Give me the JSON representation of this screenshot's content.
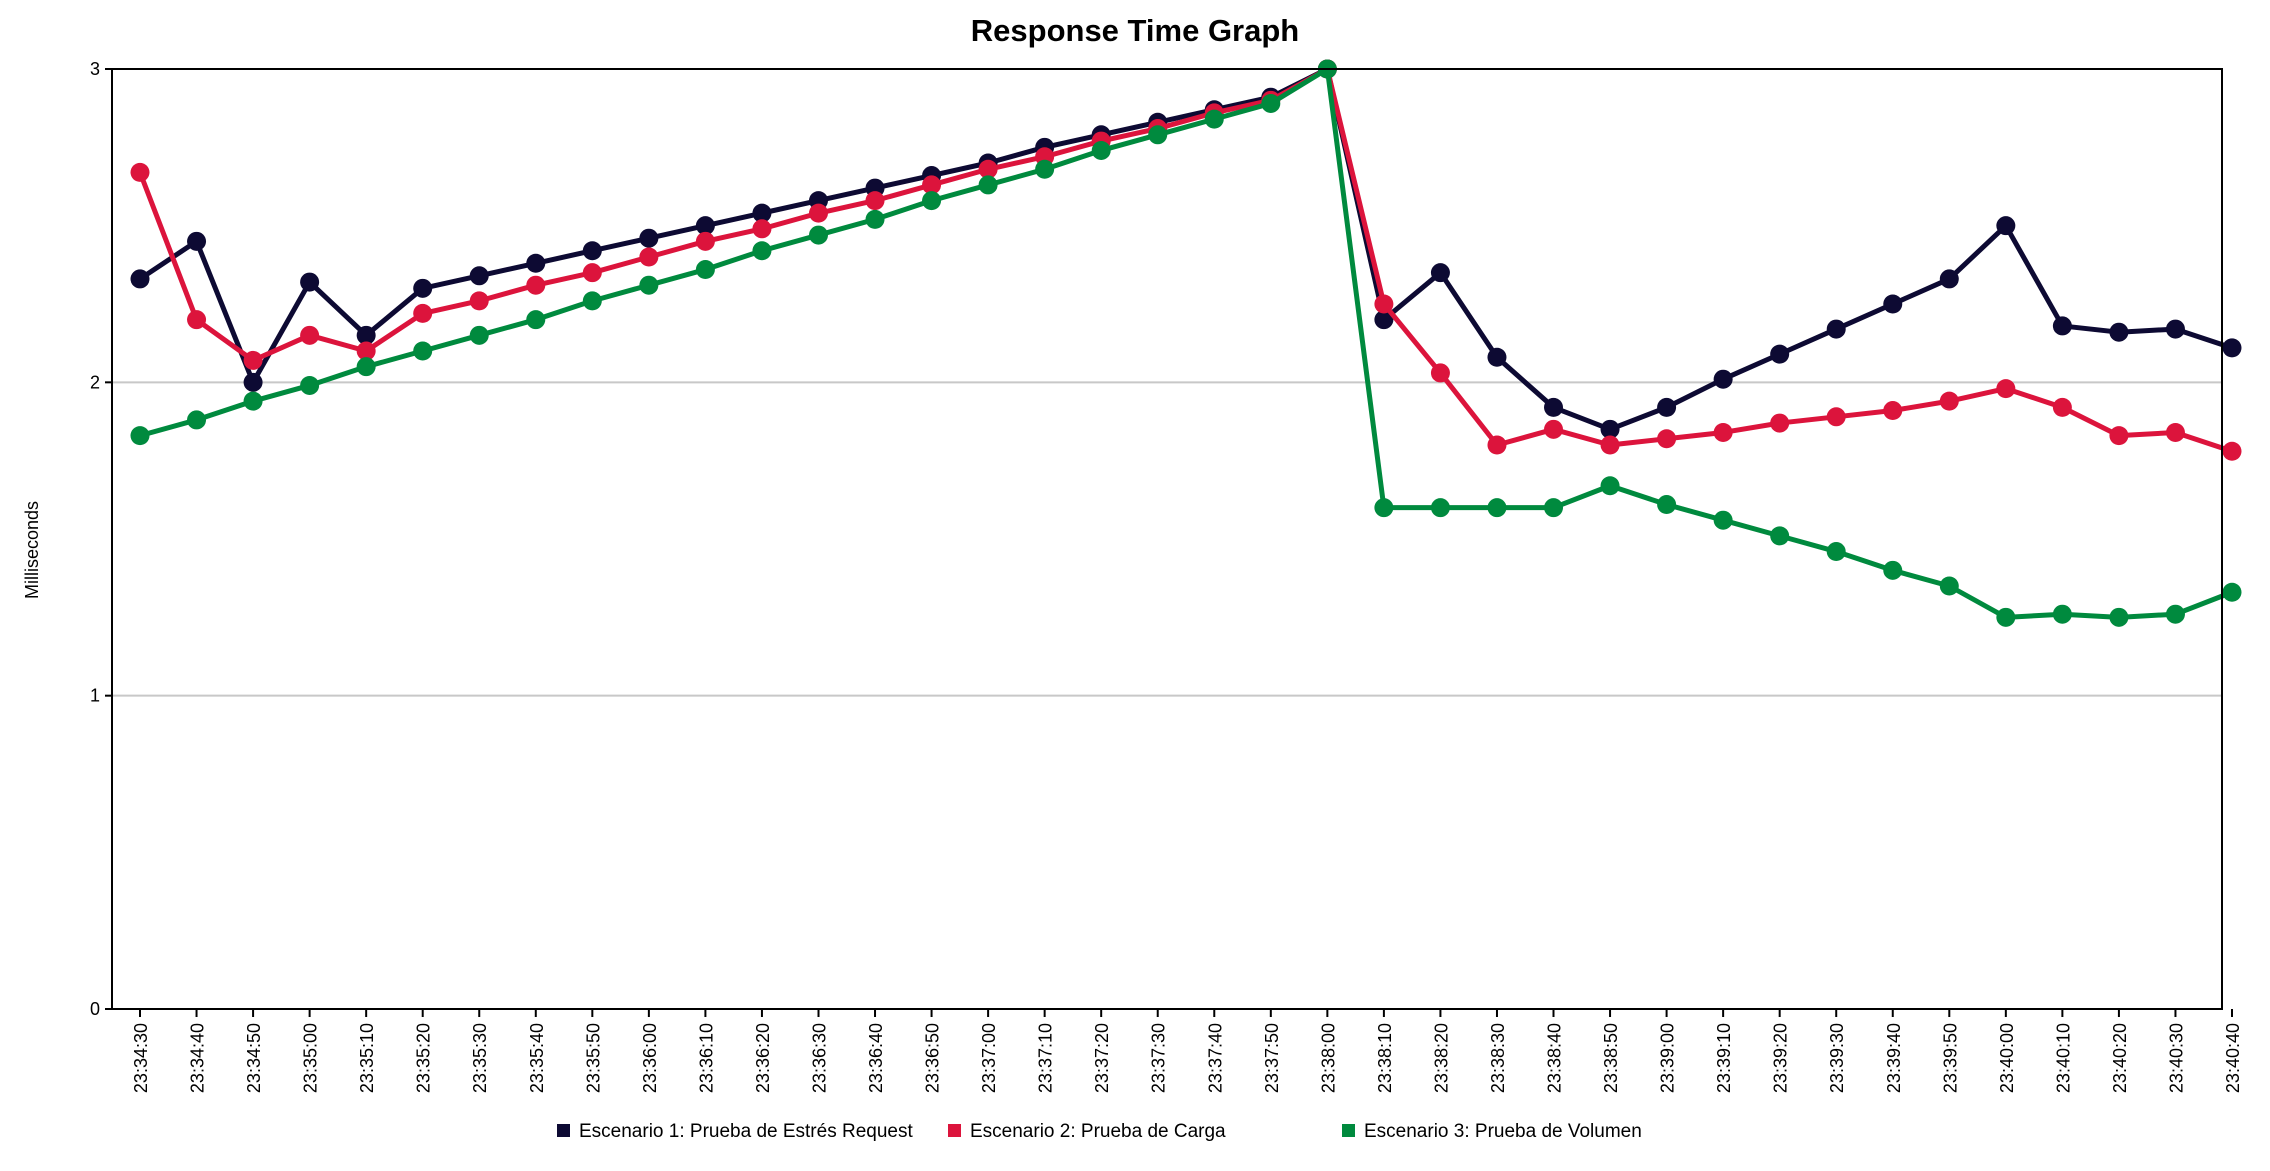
{
  "chart_data": {
    "type": "line",
    "title": "Response Time Graph",
    "xlabel": "",
    "ylabel": "Milliseconds",
    "ylim": [
      0,
      3
    ],
    "yticks": [
      "0",
      "1",
      "2",
      "3"
    ],
    "grid": "horizontal",
    "legend_position": "bottom",
    "categories": [
      "23:34:30",
      "23:34:40",
      "23:34:50",
      "23:35:00",
      "23:35:10",
      "23:35:20",
      "23:35:30",
      "23:35:40",
      "23:35:50",
      "23:36:00",
      "23:36:10",
      "23:36:20",
      "23:36:30",
      "23:36:40",
      "23:36:50",
      "23:37:00",
      "23:37:10",
      "23:37:20",
      "23:37:30",
      "23:37:40",
      "23:37:50",
      "23:38:00",
      "23:38:10",
      "23:38:20",
      "23:38:30",
      "23:38:40",
      "23:38:50",
      "23:39:00",
      "23:39:10",
      "23:39:20",
      "23:39:30",
      "23:39:40",
      "23:39:50",
      "23:40:00",
      "23:40:10",
      "23:40:20",
      "23:40:30",
      "23:40:40"
    ],
    "series": [
      {
        "name": "Escenario 1: Prueba de Estrés Request",
        "color": "#0d0a33",
        "values": [
          2.33,
          2.45,
          2.0,
          2.32,
          2.15,
          2.3,
          2.34,
          2.38,
          2.42,
          2.46,
          2.5,
          2.54,
          2.58,
          2.62,
          2.66,
          2.7,
          2.75,
          2.79,
          2.83,
          2.87,
          2.91,
          3.0,
          2.2,
          2.35,
          2.08,
          1.92,
          1.85,
          1.92,
          2.01,
          2.09,
          2.17,
          2.25,
          2.33,
          2.5,
          2.18,
          2.16,
          2.17,
          2.11
        ]
      },
      {
        "name": "Escenario 2: Prueba de Carga",
        "color": "#dc143c",
        "values": [
          2.67,
          2.2,
          2.07,
          2.15,
          2.1,
          2.22,
          2.26,
          2.31,
          2.35,
          2.4,
          2.45,
          2.49,
          2.54,
          2.58,
          2.63,
          2.68,
          2.72,
          2.77,
          2.81,
          2.86,
          2.9,
          3.0,
          2.25,
          2.03,
          1.8,
          1.85,
          1.8,
          1.82,
          1.84,
          1.87,
          1.89,
          1.91,
          1.94,
          1.98,
          1.92,
          1.83,
          1.84,
          1.78
        ]
      },
      {
        "name": "Escenario 3: Prueba de Volumen",
        "color": "#008a3e",
        "values": [
          1.83,
          1.88,
          1.94,
          1.99,
          2.05,
          2.1,
          2.15,
          2.2,
          2.26,
          2.31,
          2.36,
          2.42,
          2.47,
          2.52,
          2.58,
          2.63,
          2.68,
          2.74,
          2.79,
          2.84,
          2.89,
          3.0,
          1.6,
          1.6,
          1.6,
          1.6,
          1.67,
          1.61,
          1.56,
          1.51,
          1.46,
          1.4,
          1.35,
          1.25,
          1.26,
          1.25,
          1.26,
          1.33
        ]
      }
    ]
  }
}
